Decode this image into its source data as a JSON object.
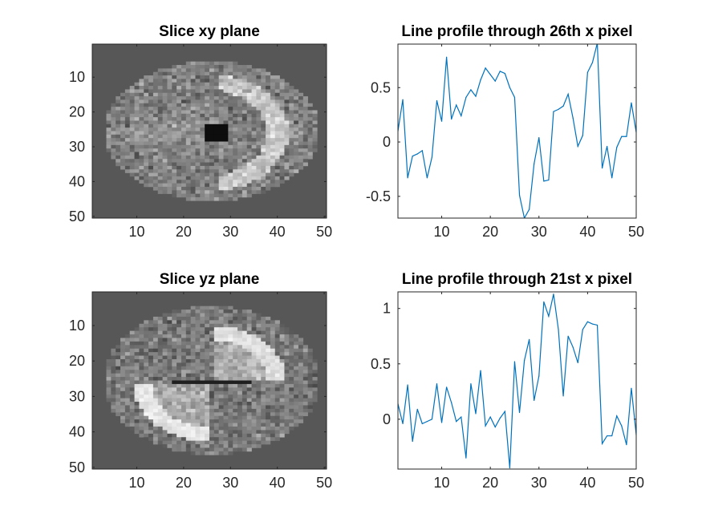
{
  "figure": {
    "background": "#ffffff",
    "line_color": "#0072BD"
  },
  "chart_data": [
    {
      "type": "heatmap",
      "title": "Slice xy plane",
      "xlim": [
        0.5,
        50.5
      ],
      "ylim": [
        0.5,
        50.5
      ],
      "y_reversed": true,
      "xticks": [
        10,
        20,
        30,
        40,
        50
      ],
      "yticks": [
        10,
        20,
        30,
        40,
        50
      ],
      "colormap": "gray",
      "grid": false
    },
    {
      "type": "line",
      "title": "Line profile through 26th x pixel",
      "xlim": [
        1,
        50
      ],
      "ylim": [
        -0.7,
        0.9
      ],
      "xticks": [
        10,
        20,
        30,
        40,
        50
      ],
      "yticks": [
        -0.5,
        0,
        0.5
      ],
      "ytick_labels": [
        "-0.5",
        "0",
        "0.5"
      ],
      "grid": false,
      "series": [
        {
          "x": [
            1,
            2,
            3,
            4,
            5,
            6,
            7,
            8,
            9,
            10,
            11,
            12,
            13,
            14,
            15,
            16,
            17,
            18,
            19,
            20,
            21,
            22,
            23,
            24,
            25,
            26,
            27,
            28,
            29,
            30,
            31,
            32,
            33,
            34,
            35,
            36,
            37,
            38,
            39,
            40,
            41,
            42,
            43,
            44,
            45,
            46,
            47,
            48,
            49,
            50
          ],
          "values": [
            0.1,
            0.39,
            -0.33,
            -0.13,
            -0.11,
            -0.08,
            -0.33,
            -0.14,
            0.38,
            0.19,
            0.78,
            0.21,
            0.34,
            0.24,
            0.41,
            0.48,
            0.42,
            0.57,
            0.68,
            0.62,
            0.56,
            0.65,
            0.63,
            0.5,
            0.41,
            -0.49,
            -0.7,
            -0.62,
            -0.2,
            0.04,
            -0.36,
            -0.35,
            0.28,
            0.3,
            0.33,
            0.44,
            0.22,
            -0.04,
            0.06,
            0.64,
            0.73,
            0.91,
            -0.24,
            -0.04,
            -0.33,
            -0.05,
            0.05,
            0.05,
            0.36,
            0.09
          ]
        }
      ]
    },
    {
      "type": "heatmap",
      "title": "Slice yz plane",
      "xlim": [
        0.5,
        50.5
      ],
      "ylim": [
        0.5,
        50.5
      ],
      "y_reversed": true,
      "xticks": [
        10,
        20,
        30,
        40,
        50
      ],
      "yticks": [
        10,
        20,
        30,
        40,
        50
      ],
      "colormap": "gray",
      "grid": false
    },
    {
      "type": "line",
      "title": "Line profile through 21st x pixel",
      "xlim": [
        1,
        50
      ],
      "ylim": [
        -0.45,
        1.15
      ],
      "xticks": [
        10,
        20,
        30,
        40,
        50
      ],
      "yticks": [
        0,
        0.5,
        1
      ],
      "ytick_labels": [
        "0",
        "0.5",
        "1"
      ],
      "grid": false,
      "series": [
        {
          "x": [
            1,
            2,
            3,
            4,
            5,
            6,
            7,
            8,
            9,
            10,
            11,
            12,
            13,
            14,
            15,
            16,
            17,
            18,
            19,
            20,
            21,
            22,
            23,
            24,
            25,
            26,
            27,
            28,
            29,
            30,
            31,
            32,
            33,
            34,
            35,
            36,
            37,
            38,
            39,
            40,
            41,
            42,
            43,
            44,
            45,
            46,
            47,
            48,
            49,
            50
          ],
          "values": [
            0.14,
            -0.04,
            0.31,
            -0.2,
            0.09,
            -0.04,
            -0.02,
            0.0,
            0.32,
            -0.03,
            0.29,
            0.15,
            -0.02,
            0.02,
            -0.35,
            0.32,
            0.05,
            0.44,
            -0.06,
            0.02,
            -0.07,
            0.01,
            0.07,
            -0.44,
            0.52,
            0.06,
            0.53,
            0.72,
            0.17,
            0.39,
            1.06,
            0.93,
            1.13,
            0.81,
            0.21,
            0.75,
            0.65,
            0.51,
            0.81,
            0.88,
            0.86,
            0.85,
            -0.22,
            -0.15,
            -0.15,
            0.03,
            -0.06,
            -0.23,
            0.28,
            -0.14
          ]
        }
      ]
    }
  ]
}
